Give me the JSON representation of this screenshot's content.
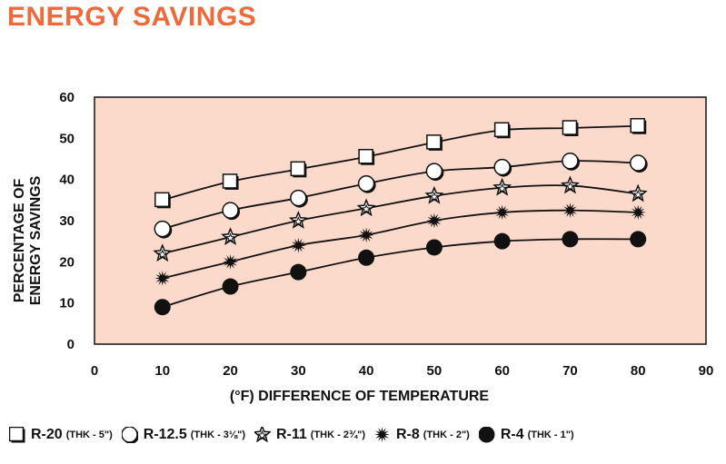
{
  "title": "ENERGY SAVINGS",
  "chart_data": {
    "type": "line",
    "xlabel": "(°F) DIFFERENCE OF TEMPERATURE",
    "ylabel": [
      "PERCENTAGE OF",
      "ENERGY SAVINGS"
    ],
    "xlim": [
      0,
      90
    ],
    "ylim": [
      0,
      60
    ],
    "xticks": [
      0,
      10,
      20,
      30,
      40,
      50,
      60,
      70,
      80,
      90
    ],
    "yticks": [
      0,
      10,
      20,
      30,
      40,
      50,
      60
    ],
    "grid": false,
    "legend_position": "bottom",
    "plot_background": "#fbdacb",
    "x": [
      10,
      20,
      30,
      40,
      50,
      60,
      70,
      80
    ],
    "series": [
      {
        "name": "R-20",
        "note": "(THK - 5\")",
        "marker": "square",
        "values": [
          35,
          39.5,
          42.5,
          45.5,
          49,
          52,
          52.5,
          53
        ]
      },
      {
        "name": "R-12.5",
        "note": "(THK - 3⅛\")",
        "marker": "circle-open",
        "values": [
          28,
          32.5,
          35.5,
          39,
          42,
          43,
          44.5,
          44
        ]
      },
      {
        "name": "R-11",
        "note": "(THK - 2¾\")",
        "marker": "star-open",
        "values": [
          22,
          26,
          30,
          33,
          36,
          38,
          38.5,
          36.5
        ]
      },
      {
        "name": "R-8",
        "note": "(THK - 2\")",
        "marker": "star-filled",
        "values": [
          16,
          20,
          24,
          26.5,
          30,
          32,
          32.5,
          32
        ]
      },
      {
        "name": "R-4",
        "note": "(THK - 1\")",
        "marker": "circle-filled",
        "values": [
          9,
          14,
          17.5,
          21,
          23.5,
          25,
          25.5,
          25.5
        ]
      }
    ]
  }
}
